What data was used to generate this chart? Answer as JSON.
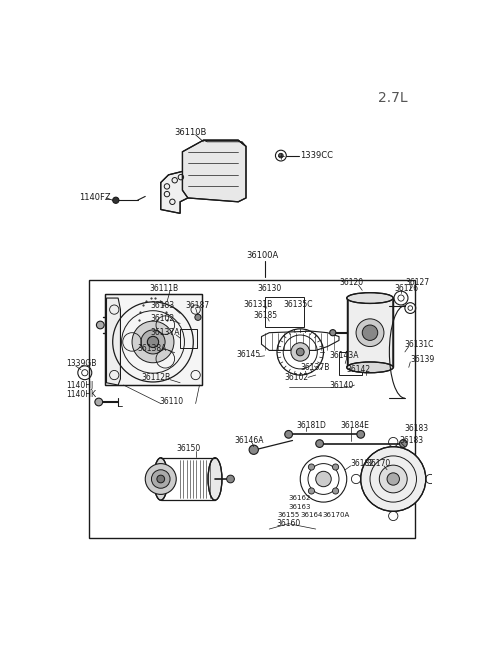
{
  "title": "2.7L",
  "bg_color": "#ffffff",
  "lc": "#1a1a1a",
  "figsize": [
    4.8,
    6.55
  ],
  "dpi": 100,
  "xlim": [
    0,
    480
  ],
  "ylim": [
    0,
    655
  ]
}
